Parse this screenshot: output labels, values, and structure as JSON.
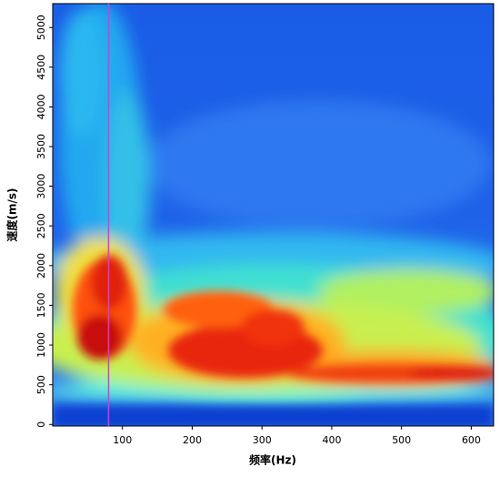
{
  "chart_data": {
    "type": "heatmap",
    "x_label": "频率(Hz)",
    "y_label": "速度(m/s)",
    "xlim": [
      0,
      632
    ],
    "ylim": [
      -20,
      5300
    ],
    "xticks": [
      100,
      200,
      300,
      400,
      500,
      600
    ],
    "yticks": [
      0,
      500,
      1000,
      1500,
      2000,
      2500,
      3000,
      3500,
      4000,
      4500,
      5000
    ],
    "marker_line": {
      "x": 80,
      "color": "#d040d0"
    }
  }
}
